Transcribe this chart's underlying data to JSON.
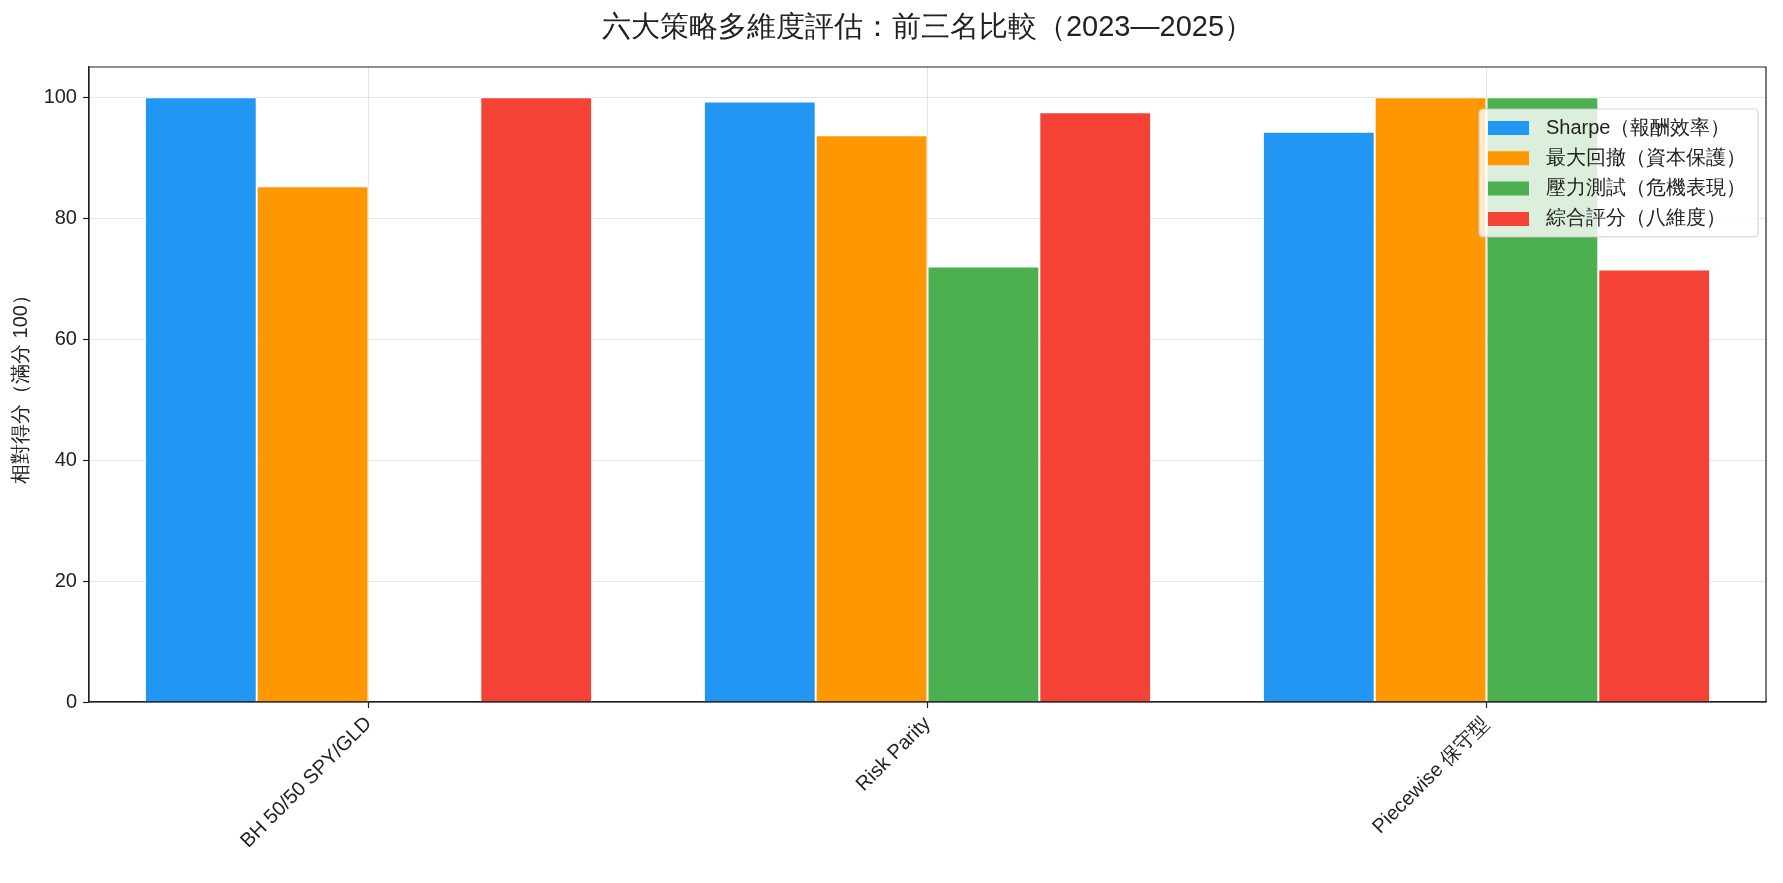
{
  "chart_data": {
    "type": "bar",
    "title": "六大策略多維度評估：前三名比較（2023—2025）",
    "ylabel": "相對得分（滿分 100）",
    "categories": [
      "BH 50/50 SPY/GLD",
      "Risk Parity",
      "Piecewise 保守型"
    ],
    "series": [
      {
        "name": "Sharpe（報酬效率）",
        "color": "#2196f3",
        "values": [
          100,
          99.3,
          94.3
        ]
      },
      {
        "name": "最大回撤（資本保護）",
        "color": "#ff9800",
        "values": [
          85.3,
          93.7,
          100
        ]
      },
      {
        "name": "壓力測試（危機表現）",
        "color": "#4caf50",
        "values": [
          0,
          72.0,
          100
        ]
      },
      {
        "name": "綜合評分（八維度）",
        "color": "#f44336",
        "values": [
          100,
          97.5,
          71.5
        ]
      }
    ],
    "ylim": [
      0,
      105
    ],
    "yticks": [
      0,
      20,
      40,
      60,
      80,
      100
    ],
    "grid": true,
    "legend": "top right"
  }
}
